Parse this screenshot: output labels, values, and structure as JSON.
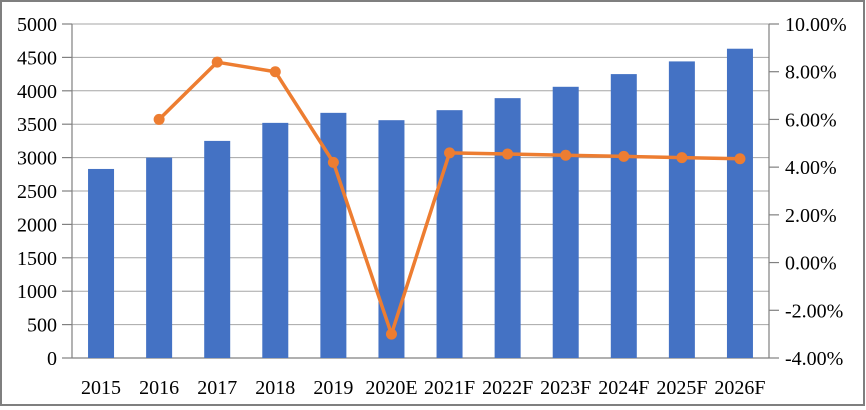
{
  "chart_data": {
    "type": "combo-bar-line",
    "title": "",
    "categories": [
      "2015",
      "2016",
      "2017",
      "2018",
      "2019",
      "2020E",
      "2021F",
      "2022F",
      "2023F",
      "2024F",
      "2025F",
      "2026F"
    ],
    "series": [
      {
        "name": "value-bars",
        "type": "bar",
        "axis": "left",
        "color": "#4472C4",
        "values": [
          2830,
          3000,
          3250,
          3520,
          3670,
          3560,
          3710,
          3890,
          4060,
          4250,
          4440,
          4630
        ]
      },
      {
        "name": "growth-rate-line",
        "type": "line",
        "axis": "right",
        "color": "#ED7D31",
        "values": [
          null,
          6.0,
          8.4,
          8.0,
          4.2,
          -3.0,
          4.6,
          4.55,
          4.5,
          4.45,
          4.4,
          4.35
        ]
      }
    ],
    "left_axis": {
      "min": 0,
      "max": 5000,
      "step": 500,
      "tick_labels": [
        "0",
        "500",
        "1000",
        "1500",
        "2000",
        "2500",
        "3000",
        "3500",
        "4000",
        "4500",
        "5000"
      ]
    },
    "right_axis": {
      "min": -4,
      "max": 10,
      "step": 2,
      "decimals": 2,
      "suffix": "%",
      "tick_labels": [
        "-4.00%",
        "-2.00%",
        "0.00%",
        "2.00%",
        "4.00%",
        "6.00%",
        "8.00%",
        "10.00%"
      ]
    },
    "grid": true,
    "legend": "none"
  },
  "colors": {
    "bar": "#4472C4",
    "line": "#ED7D31",
    "gridline": "#A6A6A6",
    "axis_line": "#808080",
    "tick": "#808080",
    "label_text": "#000000",
    "frame_border": "#7f7f7f",
    "background": "#ffffff"
  }
}
